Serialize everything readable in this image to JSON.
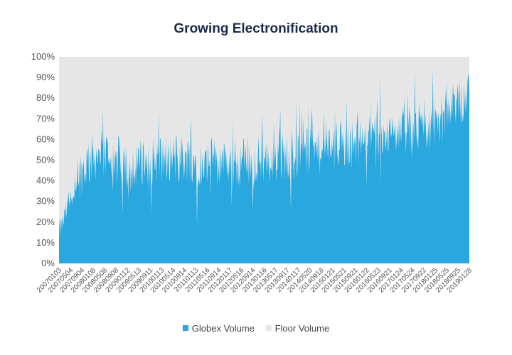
{
  "chart_data": {
    "type": "area",
    "title": "Growing Electronification",
    "xlabel": "",
    "ylabel": "",
    "ylim": [
      0,
      100
    ],
    "y_ticks": [
      "0%",
      "10%",
      "20%",
      "30%",
      "40%",
      "50%",
      "60%",
      "70%",
      "80%",
      "90%",
      "100%"
    ],
    "x_ticks": [
      "20070103",
      "20070504",
      "20070904",
      "20080108",
      "20080508",
      "20080908",
      "20090112",
      "20090513",
      "20090911",
      "20100113",
      "20100514",
      "20100914",
      "20110113",
      "20110516",
      "20110914",
      "20120117",
      "20120516",
      "20120914",
      "20130116",
      "20130517",
      "20130917",
      "20140117",
      "20140520",
      "20140918",
      "20150121",
      "20150521",
      "20150921",
      "20160122",
      "20160523",
      "20160921",
      "20170124",
      "20170524",
      "20170922",
      "20180125",
      "20180525",
      "20180925",
      "20190128"
    ],
    "series": [
      {
        "name": "Globex Volume",
        "color": "#29a8e0",
        "trend": [
          15,
          30,
          45,
          52,
          53,
          50,
          47,
          48,
          50,
          51,
          50,
          51,
          50,
          49,
          50,
          48,
          49,
          50,
          50,
          51,
          52,
          52,
          53,
          55,
          57,
          57,
          58,
          60,
          61,
          62,
          63,
          64,
          65,
          68,
          72,
          78,
          82
        ]
      },
      {
        "name": "Floor Volume",
        "color": "#e6e6e6"
      }
    ],
    "grid": false,
    "legend_position": "bottom"
  }
}
